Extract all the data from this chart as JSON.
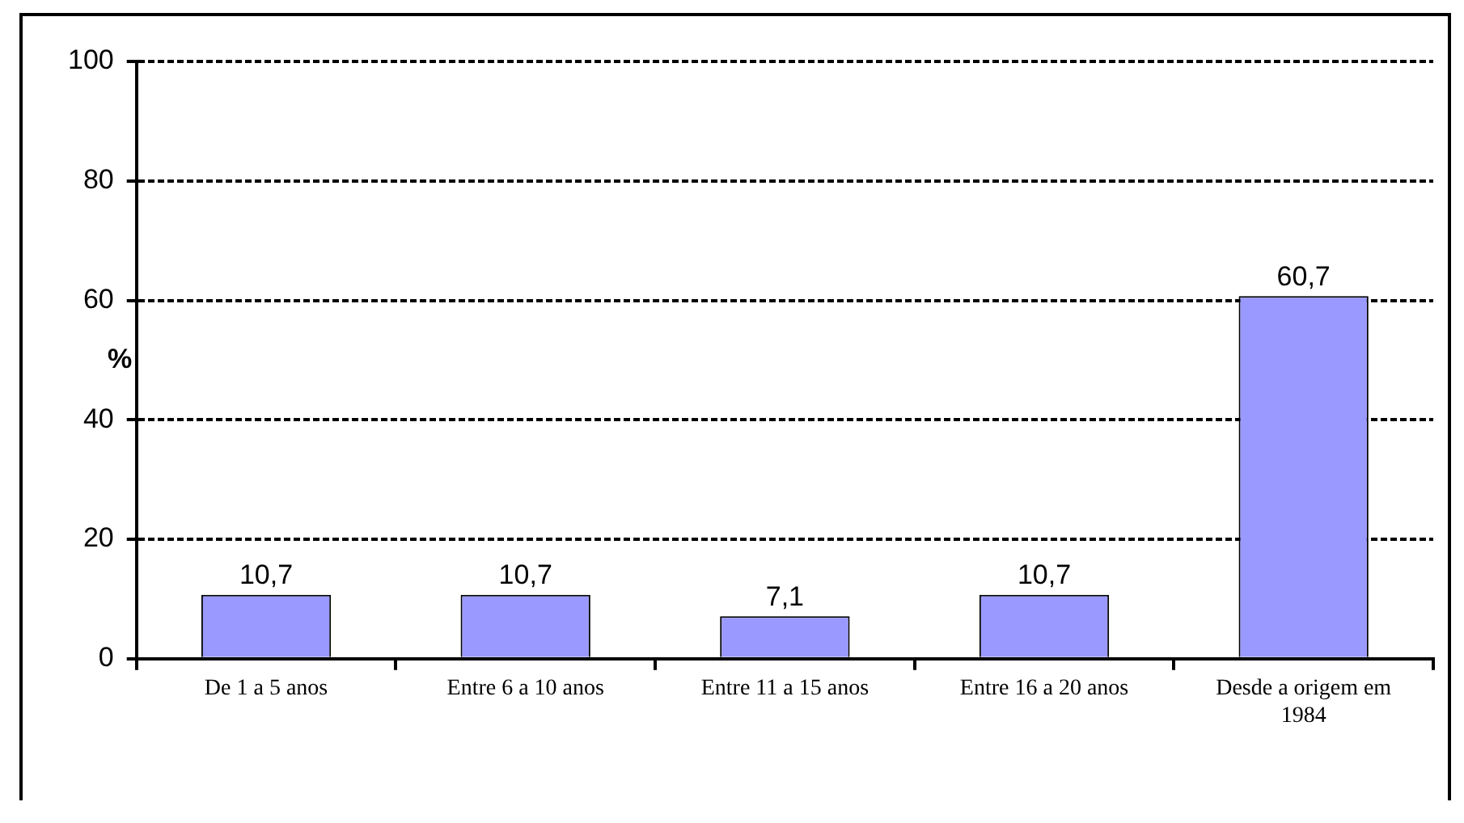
{
  "chart_data": {
    "type": "bar",
    "ylabel": "%",
    "categories": [
      "De 1 a 5 anos",
      "Entre 6 a 10 anos",
      "Entre 11 a 15 anos",
      "Entre 16 a 20 anos",
      "Desde a origem em 1984"
    ],
    "values": [
      10.7,
      10.7,
      7.1,
      10.7,
      60.7
    ],
    "value_labels": [
      "10,7",
      "10,7",
      "7,1",
      "10,7",
      "60,7"
    ],
    "color": "#9999ff",
    "ylim": [
      0,
      100
    ],
    "yticks": [
      0,
      20,
      40,
      60,
      80,
      100
    ],
    "grid": "y",
    "legend": false
  }
}
